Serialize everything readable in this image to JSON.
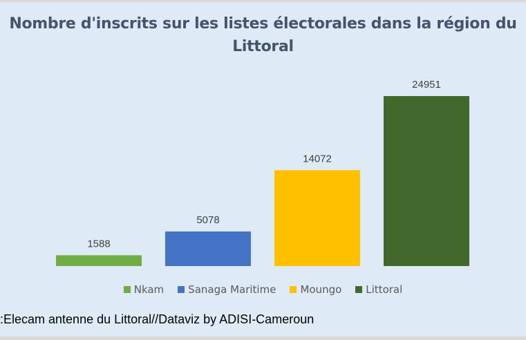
{
  "chart_data": {
    "type": "bar",
    "title": "Nombre d'inscrits sur les listes électorales dans la région du Littoral",
    "categories": [
      "Nkam",
      "Sanaga Maritime",
      "Moungo",
      "Littoral"
    ],
    "values": [
      1588,
      5078,
      14072,
      24951
    ],
    "colors": [
      "#70ad47",
      "#4472c4",
      "#ffc000",
      "#43682b"
    ],
    "legend": [
      "Nkam",
      "Sanaga Maritime",
      "Moungo",
      "Littoral"
    ],
    "legend_position": "bottom",
    "ylim": [
      0,
      25000
    ],
    "grid": false,
    "xlabel": "",
    "ylabel": ""
  },
  "source": ":Elecam antenne du Littoral//Dataviz by ADISI-Cameroun",
  "background_color": "#deeaf6"
}
